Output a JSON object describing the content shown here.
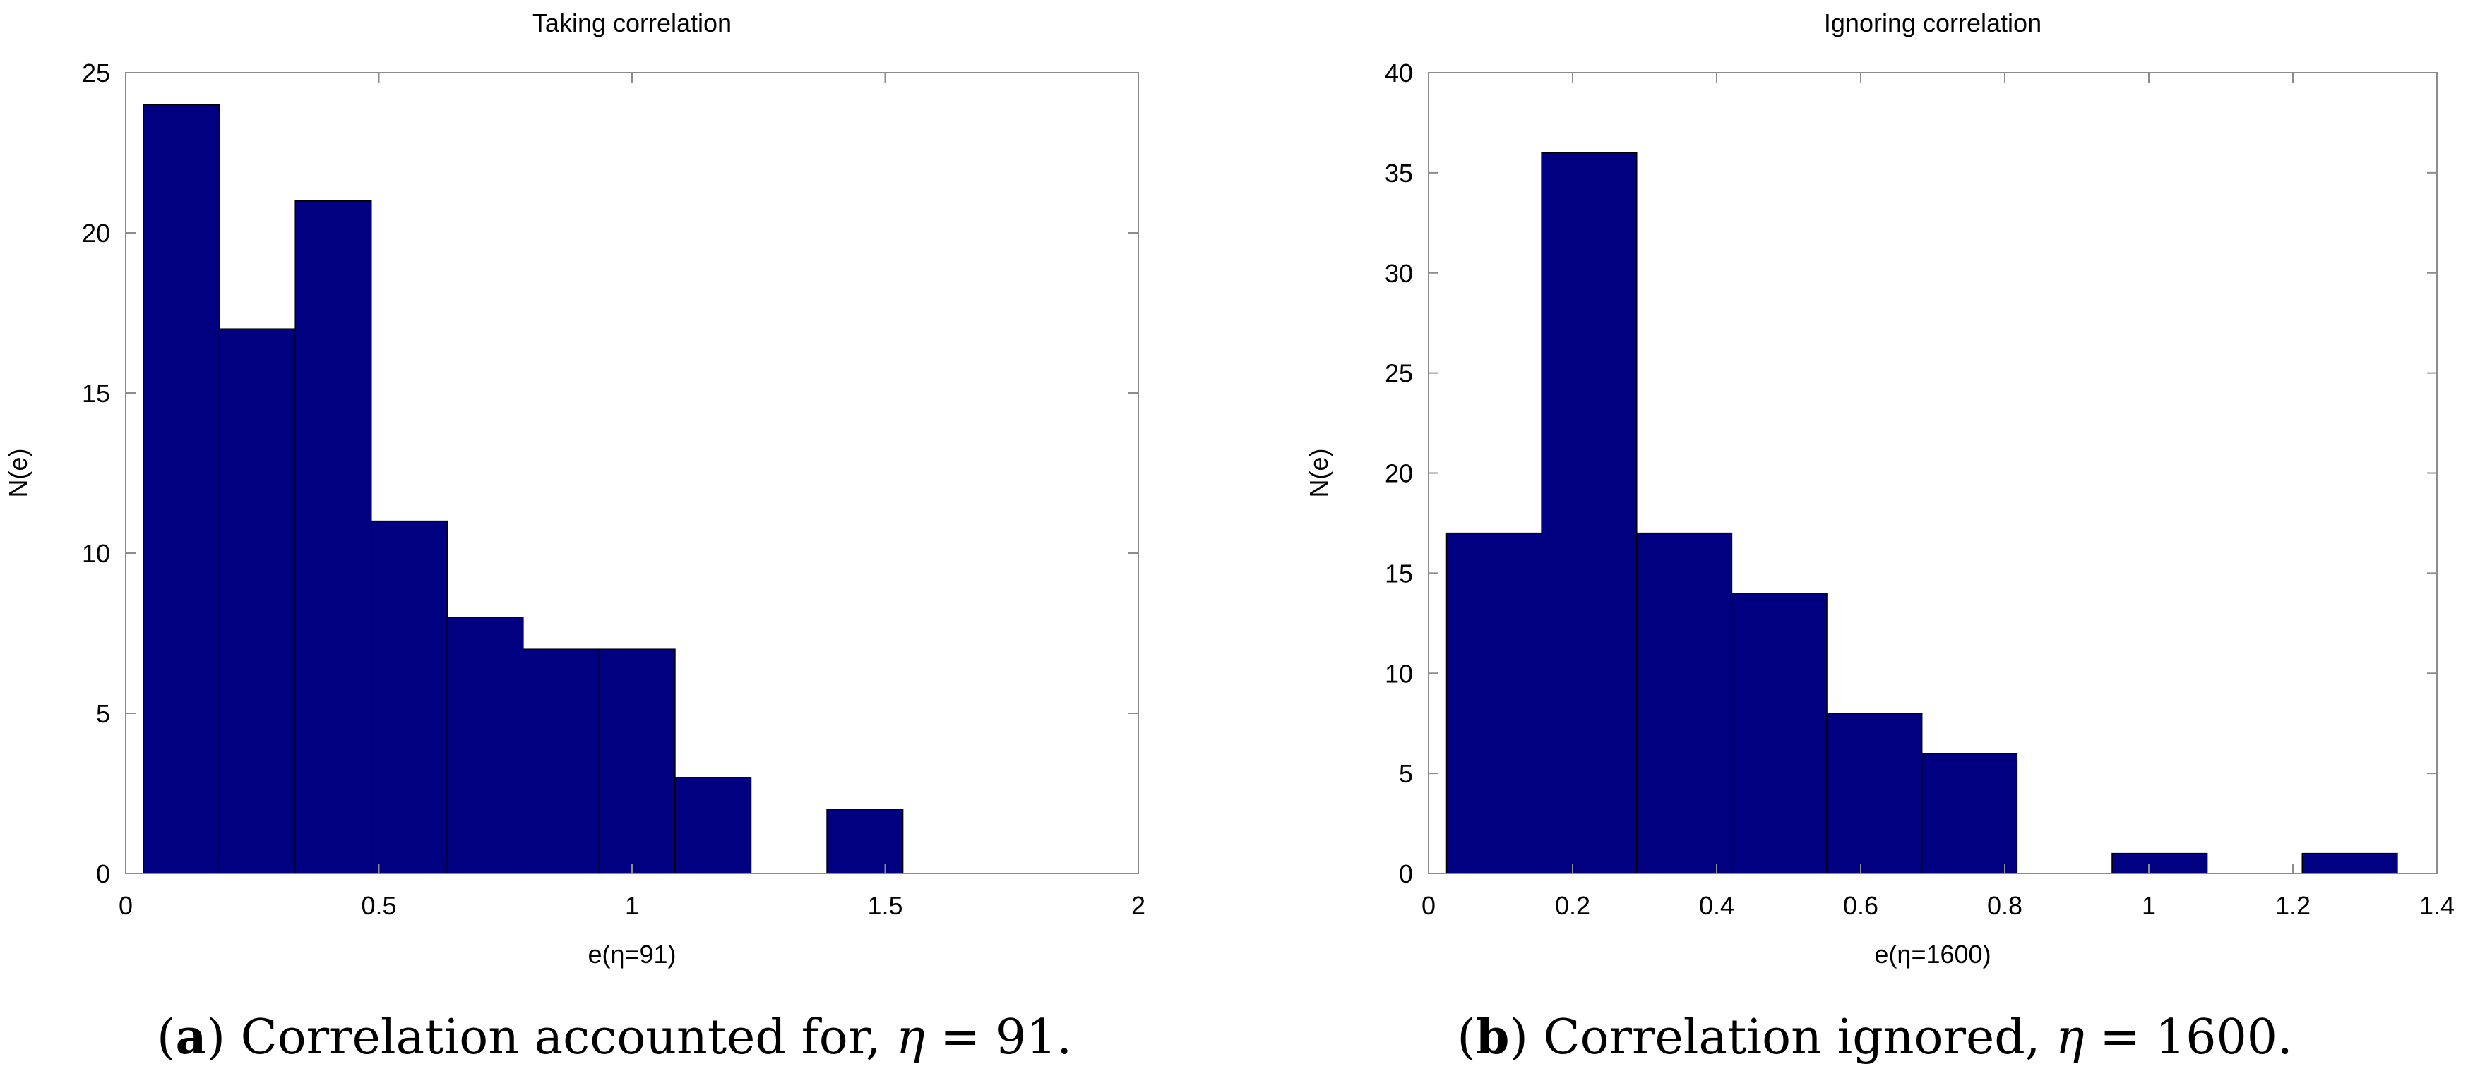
{
  "chart_data": [
    {
      "type": "bar",
      "title": "Taking correlation",
      "xlabel": "e(η=91)",
      "ylabel": "N(e)",
      "xlim": [
        0,
        2
      ],
      "ylim": [
        0,
        25
      ],
      "xticks": [
        0,
        0.5,
        1,
        1.5,
        2
      ],
      "xtick_labels": [
        "0",
        "0.5",
        "1",
        "1.5",
        "2"
      ],
      "yticks": [
        0,
        5,
        10,
        15,
        20,
        25
      ],
      "ytick_labels": [
        "0",
        "5",
        "10",
        "15",
        "20",
        "25"
      ],
      "bin_edges": [
        0.035,
        0.185,
        0.335,
        0.485,
        0.635,
        0.785,
        0.935,
        1.085,
        1.235,
        1.385,
        1.535
      ],
      "values": [
        24,
        17,
        21,
        11,
        8,
        7,
        7,
        3,
        0,
        2
      ],
      "bar_color": "#000080",
      "grid": false
    },
    {
      "type": "bar",
      "title": "Ignoring correlation",
      "xlabel": "e(η=1600)",
      "ylabel": "N(e)",
      "xlim": [
        0,
        1.4
      ],
      "ylim": [
        0,
        40
      ],
      "xticks": [
        0,
        0.2,
        0.4,
        0.6,
        0.8,
        1,
        1.2,
        1.4
      ],
      "xtick_labels": [
        "0",
        "0.2",
        "0.4",
        "0.6",
        "0.8",
        "1",
        "1.2",
        "1.4"
      ],
      "yticks": [
        0,
        5,
        10,
        15,
        20,
        25,
        30,
        35,
        40
      ],
      "ytick_labels": [
        "0",
        "5",
        "10",
        "15",
        "20",
        "25",
        "30",
        "35",
        "40"
      ],
      "bin_edges": [
        0.025,
        0.157,
        0.289,
        0.421,
        0.553,
        0.685,
        0.817,
        0.949,
        1.081,
        1.213,
        1.345
      ],
      "values": [
        17,
        36,
        17,
        14,
        8,
        6,
        0,
        1,
        0,
        1
      ],
      "bar_color": "#000080",
      "grid": false
    }
  ],
  "captions": [
    {
      "label": "a",
      "text": ") Correlation accounted for, ",
      "symbol": "η",
      "equation": " = 91."
    },
    {
      "label": "b",
      "text": ") Correlation ignored, ",
      "symbol": "η",
      "equation": " = 1600."
    }
  ]
}
